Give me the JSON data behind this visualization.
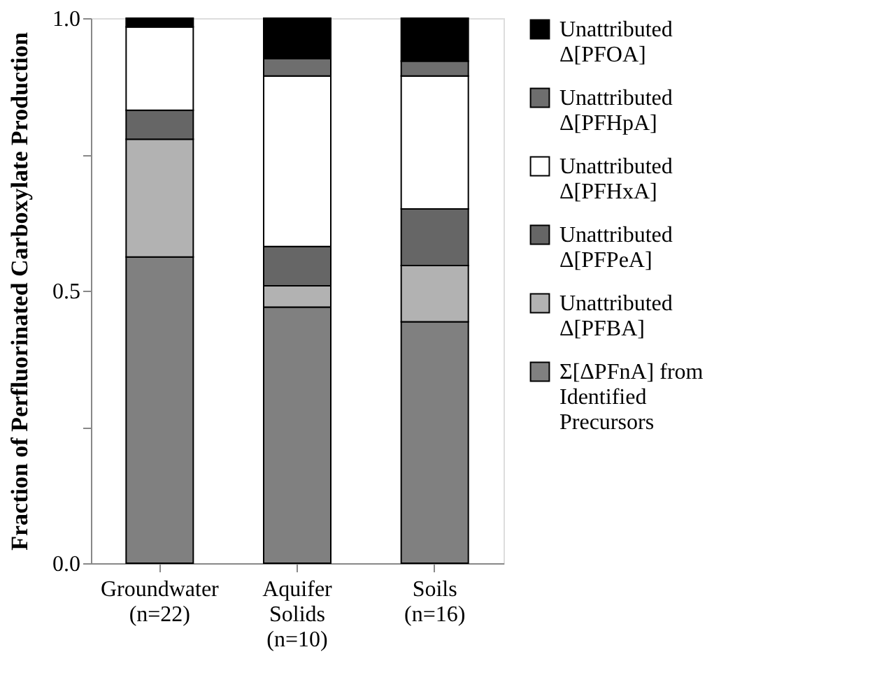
{
  "chart_data": {
    "type": "bar",
    "stacked": true,
    "ylabel": "Fraction of Perfluorinated Carboxylate Production",
    "categories": [
      "Groundwater (n=22)",
      "Aquifer Solids (n=10)",
      "Soils (n=16)"
    ],
    "series": [
      {
        "name": "Σ[ΔPFnA] from Identified Precursors",
        "color": "#808080",
        "values": [
          0.562,
          0.47,
          0.443
        ]
      },
      {
        "name": "Unattributed Δ[PFBA]",
        "color": "#b2b2b2",
        "values": [
          0.216,
          0.039,
          0.103
        ]
      },
      {
        "name": "Unattributed Δ[PFPeA]",
        "color": "#666666",
        "values": [
          0.053,
          0.072,
          0.104
        ]
      },
      {
        "name": "Unattributed Δ[PFHxA]",
        "color": "#ffffff",
        "values": [
          0.153,
          0.313,
          0.244
        ]
      },
      {
        "name": "Unattributed Δ[PFHpA]",
        "color": "#6e6e6e",
        "values": [
          0.0,
          0.032,
          0.027
        ]
      },
      {
        "name": "Unattributed Δ[PFOA]",
        "color": "#000000",
        "values": [
          0.016,
          0.074,
          0.079
        ]
      }
    ],
    "ylim": [
      0,
      1
    ],
    "yticks": [
      {
        "value": 0,
        "label": "0.0"
      },
      {
        "value": 0.25,
        "label": null
      },
      {
        "value": 0.5,
        "label": "0.5"
      },
      {
        "value": 0.75,
        "label": null
      },
      {
        "value": 1,
        "label": "1.0"
      }
    ],
    "grid": false,
    "legend": "right"
  }
}
